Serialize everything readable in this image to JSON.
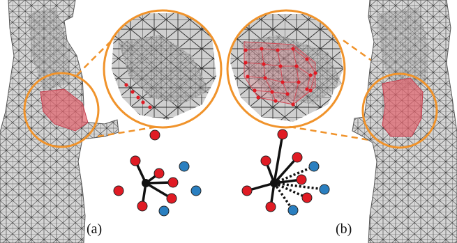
{
  "captions": {
    "left": "(a)",
    "right": "(b)"
  },
  "colors": {
    "mesh_fill": "#d4d4d4",
    "mesh_line": "#3a3a3a",
    "highlight_red": "#e0606a",
    "callout_orange": "#f0932b",
    "node_red": "#e01b24",
    "node_blue": "#2a7fc0",
    "node_center": "#111111",
    "background": "#ffffff"
  },
  "panels": {
    "left": {
      "mesh": "body-mesh-left",
      "zoom": "zoom-mesh-left",
      "graph": "neighbor-graph-left"
    },
    "right": {
      "mesh": "body-mesh-right",
      "zoom": "zoom-mesh-right",
      "graph": "neighbor-graph-right"
    }
  }
}
